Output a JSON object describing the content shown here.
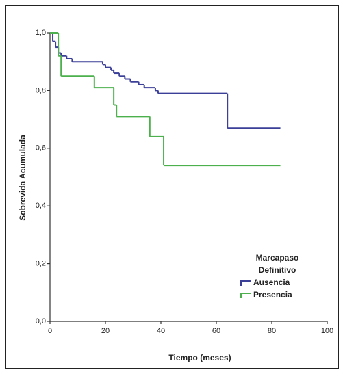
{
  "chart_data": {
    "type": "step",
    "x_label": "Tiempo (meses)",
    "y_label": "Sobrevida Acumulada",
    "legend_title": [
      "Marcapaso",
      "Definitivo"
    ],
    "xlim": [
      0,
      100
    ],
    "xticks": [
      0,
      20,
      40,
      60,
      80,
      100
    ],
    "ylim": [
      0,
      1
    ],
    "yticks": [
      {
        "value": 0,
        "label": "0,0"
      },
      {
        "value": 0.2,
        "label": "0,2"
      },
      {
        "value": 0.4,
        "label": "0,4"
      },
      {
        "value": 0.6,
        "label": "0,6"
      },
      {
        "value": 0.8,
        "label": "0,8"
      },
      {
        "value": 1,
        "label": "1,0"
      }
    ],
    "series": [
      {
        "name": "Ausencia",
        "color": "#3b3f98",
        "x": [
          0,
          1,
          2,
          3,
          4,
          6,
          8,
          19,
          20,
          22,
          23,
          25,
          27,
          29,
          32,
          34,
          38,
          39,
          64,
          83
        ],
        "values": [
          1.0,
          0.97,
          0.95,
          0.93,
          0.92,
          0.91,
          0.9,
          0.89,
          0.88,
          0.87,
          0.86,
          0.85,
          0.84,
          0.83,
          0.82,
          0.81,
          0.8,
          0.79,
          0.67,
          0.67
        ]
      },
      {
        "name": "Presencia",
        "color": "#4cb04c",
        "x": [
          0,
          3,
          4,
          16,
          23,
          24,
          36,
          41,
          83
        ],
        "values": [
          1.0,
          0.92,
          0.85,
          0.81,
          0.75,
          0.71,
          0.64,
          0.54,
          0.54
        ]
      }
    ]
  }
}
